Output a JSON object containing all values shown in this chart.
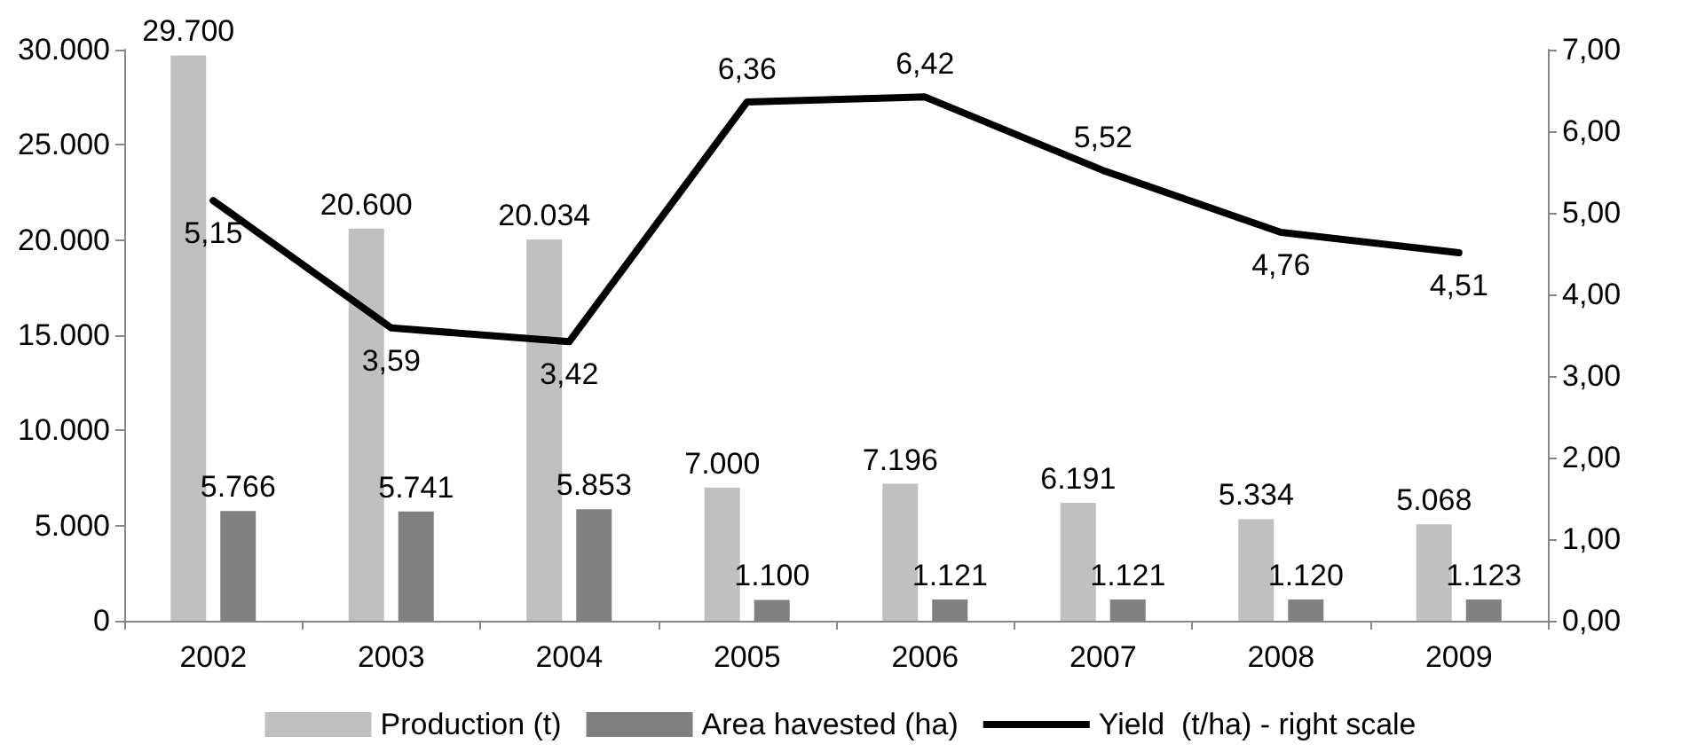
{
  "chart_data": {
    "type": "bar",
    "categories": [
      "2002",
      "2003",
      "2004",
      "2005",
      "2006",
      "2007",
      "2008",
      "2009"
    ],
    "series": [
      {
        "name": "Production (t)",
        "color": "#c0c0c0",
        "values": [
          29700,
          20600,
          20034,
          7000,
          7196,
          6191,
          5334,
          5068
        ],
        "value_labels": [
          "29.700",
          "20.600",
          "20.034",
          "7.000",
          "7.196",
          "6.191",
          "5.334",
          "5.068"
        ]
      },
      {
        "name": "Area havested (ha)",
        "color": "#808080",
        "values": [
          5766,
          5741,
          5853,
          1100,
          1121,
          1121,
          1120,
          1123
        ],
        "value_labels": [
          "5.766",
          "5.741",
          "5.853",
          "1.100",
          "1.121",
          "1.121",
          "1.120",
          "1.123"
        ]
      },
      {
        "name": "Yield  (t/ha) - right scale",
        "type": "line",
        "axis": "y2",
        "color": "#000000",
        "values": [
          5.15,
          3.59,
          3.42,
          6.36,
          6.42,
          5.52,
          4.76,
          4.51
        ],
        "value_labels": [
          "5,15",
          "3,59",
          "3,42",
          "6,36",
          "6,42",
          "5,52",
          "4,76",
          "4,51"
        ]
      }
    ],
    "ylim": [
      0,
      30000
    ],
    "yticks": [
      {
        "value": 0,
        "label": "0"
      },
      {
        "value": 5000,
        "label": "5.000"
      },
      {
        "value": 10000,
        "label": "10.000"
      },
      {
        "value": 15000,
        "label": "15.000"
      },
      {
        "value": 20000,
        "label": "20.000"
      },
      {
        "value": 25000,
        "label": "25.000"
      },
      {
        "value": 30000,
        "label": "30.000"
      }
    ],
    "y2lim": [
      0,
      7
    ],
    "y2ticks": [
      {
        "value": 0,
        "label": "0,00"
      },
      {
        "value": 1,
        "label": "1,00"
      },
      {
        "value": 2,
        "label": "2,00"
      },
      {
        "value": 3,
        "label": "3,00"
      },
      {
        "value": 4,
        "label": "4,00"
      },
      {
        "value": 5,
        "label": "5,00"
      },
      {
        "value": 6,
        "label": "6,00"
      },
      {
        "value": 7,
        "label": "7,00"
      }
    ],
    "grid": false,
    "legend": "bottom",
    "marker": "none",
    "line_style": "solid"
  }
}
